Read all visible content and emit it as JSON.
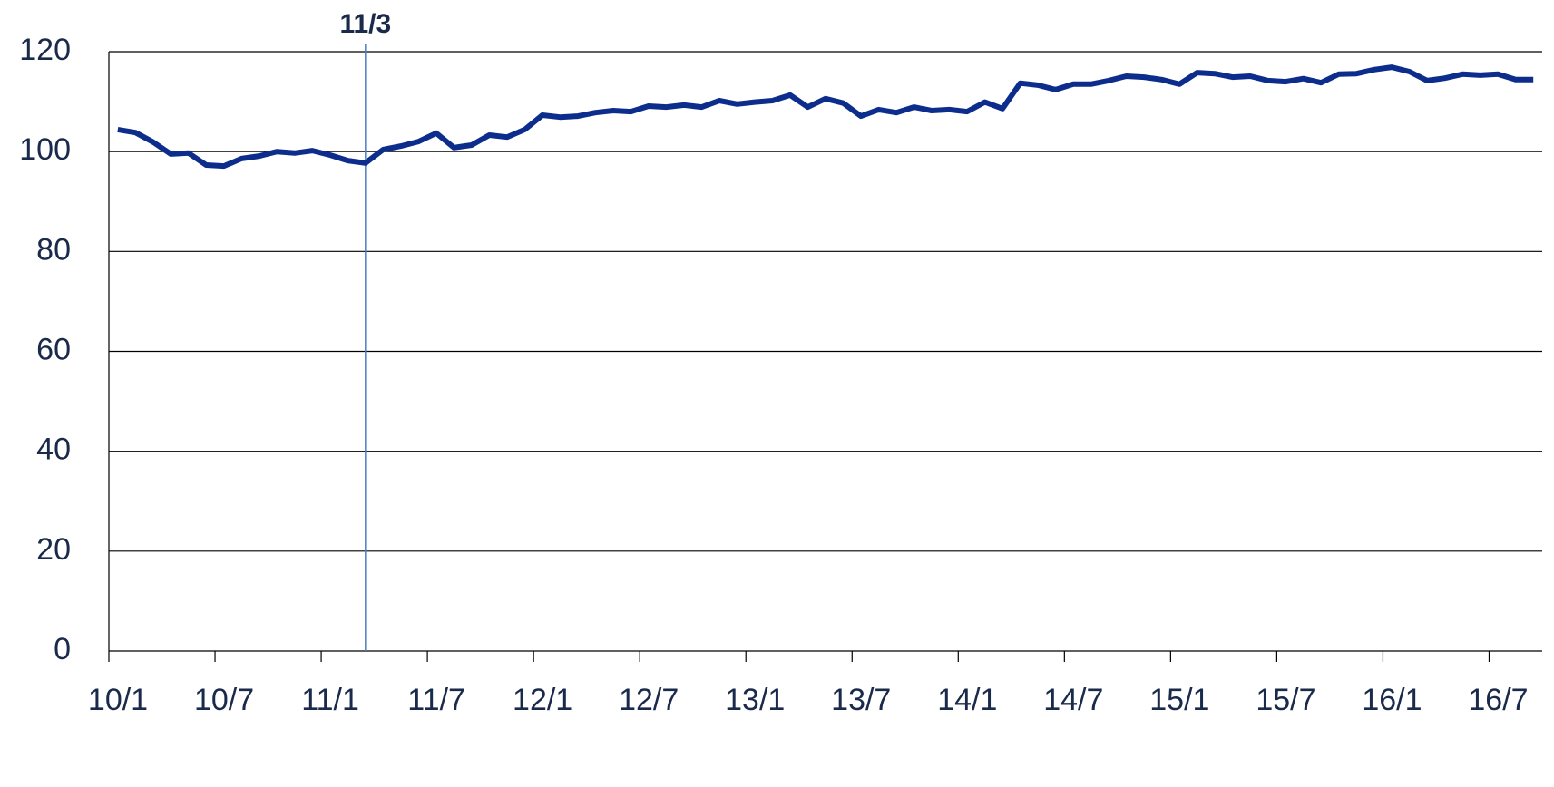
{
  "chart_data": {
    "type": "line",
    "categories": [
      "10/1",
      null,
      null,
      null,
      null,
      null,
      "10/7",
      null,
      null,
      null,
      null,
      null,
      "11/1",
      null,
      null,
      null,
      null,
      null,
      "11/7",
      null,
      null,
      null,
      null,
      null,
      "12/1",
      null,
      null,
      null,
      null,
      null,
      "12/7",
      null,
      null,
      null,
      null,
      null,
      "13/1",
      null,
      null,
      null,
      null,
      null,
      "13/7",
      null,
      null,
      null,
      null,
      null,
      "14/1",
      null,
      null,
      null,
      null,
      null,
      "14/7",
      null,
      null,
      null,
      null,
      null,
      "15/1",
      null,
      null,
      null,
      null,
      null,
      "15/7",
      null,
      null,
      null,
      null,
      null,
      "16/1",
      null,
      null,
      null,
      null,
      null,
      "16/7",
      null,
      null
    ],
    "series": [
      {
        "color": "#0d2d8c",
        "values": [
          104.4,
          103.8,
          101.9,
          99.5,
          99.7,
          97.3,
          97.1,
          98.6,
          99.1,
          100.0,
          99.7,
          100.2,
          99.3,
          98.2,
          97.7,
          100.4,
          101.1,
          102.0,
          103.7,
          100.8,
          101.3,
          103.3,
          102.9,
          104.4,
          107.3,
          106.9,
          107.1,
          107.8,
          108.2,
          108.0,
          109.1,
          108.9,
          109.3,
          108.9,
          110.2,
          109.5,
          109.9,
          110.2,
          111.3,
          108.9,
          110.6,
          109.7,
          107.1,
          108.4,
          107.8,
          108.9,
          108.2,
          108.4,
          108.0,
          109.9,
          108.6,
          113.7,
          113.3,
          112.4,
          113.5,
          113.5,
          114.2,
          115.1,
          114.9,
          114.4,
          113.5,
          115.8,
          115.6,
          114.9,
          115.1,
          114.2,
          114.0,
          114.6,
          113.8,
          115.5,
          115.6,
          116.4,
          116.9,
          116.0,
          114.2,
          114.7,
          115.5,
          115.3,
          115.5,
          114.4,
          114.4
        ]
      }
    ],
    "ylim": [
      0,
      120
    ],
    "yticks": [
      0,
      20,
      40,
      60,
      80,
      100,
      120
    ],
    "grid": true,
    "marker": {
      "label": "11/3",
      "index": 14,
      "color": "#4a7fc0"
    }
  }
}
